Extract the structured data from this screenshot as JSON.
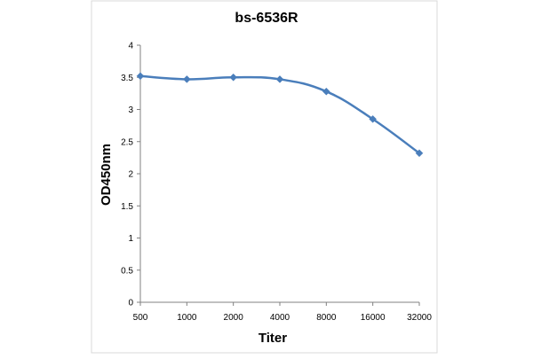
{
  "chart_data": {
    "type": "line",
    "title": "bs-6536R",
    "xlabel": "Titer",
    "ylabel": "OD450nm",
    "categories": [
      "500",
      "1000",
      "2000",
      "4000",
      "8000",
      "16000",
      "32000"
    ],
    "series": [
      {
        "values": [
          3.52,
          3.47,
          3.5,
          3.47,
          3.28,
          2.85,
          2.32
        ]
      }
    ],
    "ylim": [
      0,
      4
    ],
    "yticks": [
      "0",
      "0.5",
      "1",
      "1.5",
      "2",
      "2.5",
      "3",
      "3.5",
      "4"
    ],
    "grid": false,
    "line_color": "#4a7ebb"
  }
}
